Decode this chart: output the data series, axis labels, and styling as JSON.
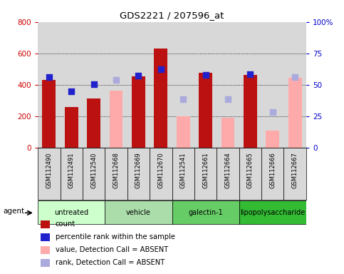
{
  "title": "GDS2221 / 207596_at",
  "samples": [
    "GSM112490",
    "GSM112491",
    "GSM112540",
    "GSM112668",
    "GSM112669",
    "GSM112670",
    "GSM112541",
    "GSM112661",
    "GSM112664",
    "GSM112665",
    "GSM112666",
    "GSM112667"
  ],
  "groups": [
    {
      "label": "untreated",
      "indices": [
        0,
        1,
        2
      ],
      "color": "#ccffcc"
    },
    {
      "label": "vehicle",
      "indices": [
        3,
        4,
        5
      ],
      "color": "#aaddaa"
    },
    {
      "label": "galectin-1",
      "indices": [
        6,
        7,
        8
      ],
      "color": "#66cc66"
    },
    {
      "label": "lipopolysaccharide",
      "indices": [
        9,
        10,
        11
      ],
      "color": "#33bb33"
    }
  ],
  "count": [
    430,
    260,
    315,
    0,
    455,
    630,
    0,
    475,
    0,
    465,
    0,
    0
  ],
  "count_absent": [
    0,
    0,
    0,
    365,
    0,
    0,
    200,
    0,
    190,
    0,
    110,
    445
  ],
  "percentile_rank": [
    450,
    360,
    405,
    0,
    460,
    502,
    0,
    465,
    0,
    468,
    0,
    0
  ],
  "rank_absent": [
    0,
    0,
    0,
    430,
    0,
    0,
    310,
    0,
    310,
    0,
    230,
    450
  ],
  "left_ylim": [
    0,
    800
  ],
  "right_ylim": [
    0,
    100
  ],
  "left_yticks": [
    0,
    200,
    400,
    600,
    800
  ],
  "right_yticks": [
    0,
    25,
    50,
    75,
    100
  ],
  "right_yticklabels": [
    "0",
    "25",
    "50",
    "75",
    "100%"
  ],
  "count_color": "#bb1111",
  "count_absent_color": "#ffaaaa",
  "rank_color": "#2222cc",
  "rank_absent_color": "#aaaadd",
  "left_tick_color": "#cc0000",
  "right_tick_color": "#0000cc",
  "col_bg_color": "#d8d8d8",
  "agent_label": "agent"
}
